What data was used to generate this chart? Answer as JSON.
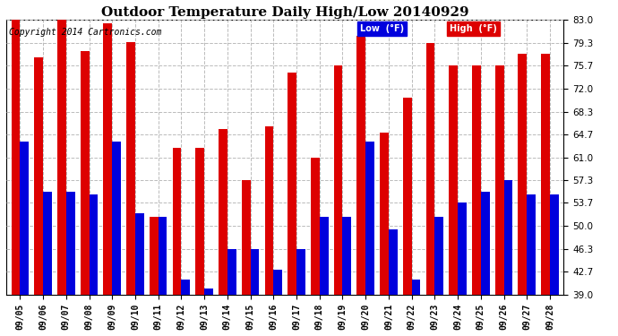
{
  "title": "Outdoor Temperature Daily High/Low 20140929",
  "copyright": "Copyright 2014 Cartronics.com",
  "dates": [
    "09/05",
    "09/06",
    "09/07",
    "09/08",
    "09/09",
    "09/10",
    "09/11",
    "09/12",
    "09/13",
    "09/14",
    "09/15",
    "09/16",
    "09/17",
    "09/18",
    "09/19",
    "09/20",
    "09/21",
    "09/22",
    "09/23",
    "09/24",
    "09/25",
    "09/26",
    "09/27",
    "09/28"
  ],
  "highs": [
    83.0,
    77.0,
    83.0,
    78.0,
    82.5,
    79.5,
    51.5,
    62.5,
    62.5,
    65.5,
    57.3,
    66.0,
    74.5,
    61.0,
    75.7,
    80.5,
    65.0,
    70.5,
    79.3,
    75.7,
    75.7,
    75.7,
    77.5,
    77.5
  ],
  "lows": [
    63.5,
    55.5,
    55.5,
    55.0,
    63.5,
    52.0,
    51.5,
    41.5,
    40.0,
    46.3,
    46.3,
    43.0,
    46.3,
    51.5,
    51.5,
    63.5,
    49.5,
    41.5,
    51.5,
    53.7,
    55.5,
    57.3,
    55.0,
    55.0
  ],
  "low_color": "#0000dd",
  "high_color": "#dd0000",
  "background_color": "#ffffff",
  "plot_bg_color": "#ffffff",
  "grid_color": "#bbbbbb",
  "yticks": [
    39.0,
    42.7,
    46.3,
    50.0,
    53.7,
    57.3,
    61.0,
    64.7,
    68.3,
    72.0,
    75.7,
    79.3,
    83.0
  ],
  "ylim": [
    39.0,
    83.0
  ],
  "title_fontsize": 11,
  "copyright_fontsize": 7,
  "legend_low_label": "Low  (°F)",
  "legend_high_label": "High  (°F)",
  "bar_width": 0.38
}
